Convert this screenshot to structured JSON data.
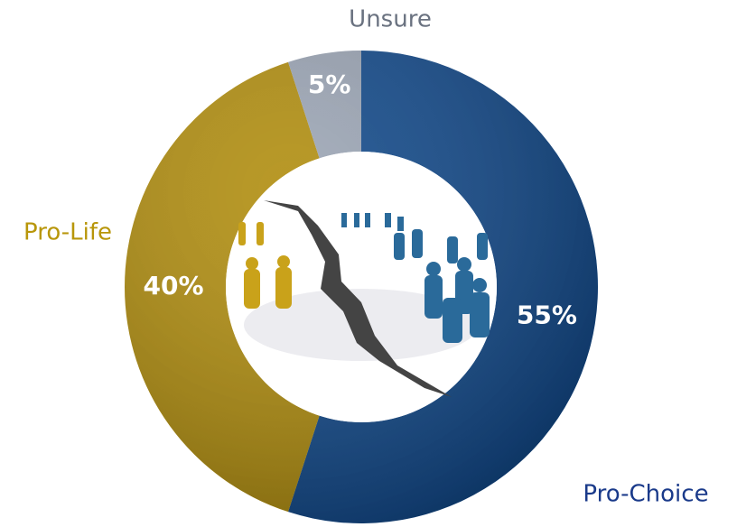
{
  "chart_data": {
    "type": "donut",
    "categories": [
      "Pro-Choice",
      "Pro-Life",
      "Unsure"
    ],
    "values": [
      55,
      40,
      5
    ],
    "value_labels": [
      "55%",
      "40%",
      "5%"
    ],
    "colors": [
      "#0d4689",
      "#b08c0a",
      "#9aa4b4"
    ]
  }
}
